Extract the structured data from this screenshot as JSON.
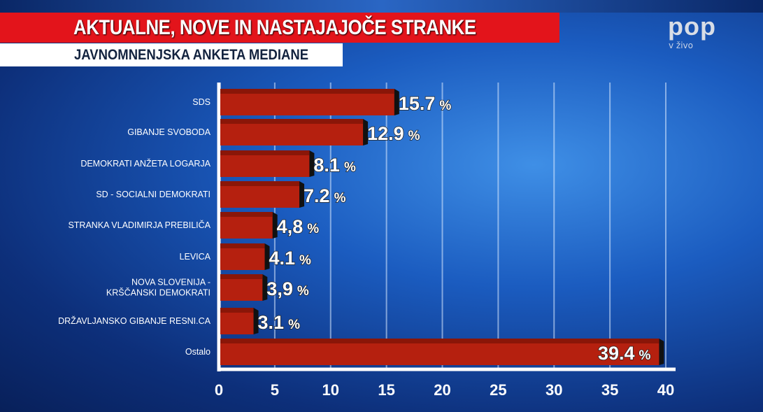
{
  "header": {
    "title": "AKTUALNE, NOVE IN NASTAJAJOČE STRANKE",
    "subtitle": "JAVNOMNENJSKA ANKETA MEDIANE",
    "logo": "pop",
    "live_label": "v živo"
  },
  "colors": {
    "bar": "#b5200f",
    "bar_top": "#8a1608",
    "title_bg": "#e3141b"
  },
  "chart_data": {
    "type": "bar",
    "orientation": "horizontal",
    "title": "AKTUALNE, NOVE IN NASTAJAJOČE STRANKE",
    "subtitle": "JAVNOMNENJSKA ANKETA MEDIANE",
    "categories": [
      [
        "SDS"
      ],
      [
        "GIBANJE SVOBODA"
      ],
      [
        "DEMOKRATI ANŽETA LOGARJA"
      ],
      [
        "SD - SOCIALNI DEMOKRATI"
      ],
      [
        "STRANKA VLADIMIRJA PREBILIČA"
      ],
      [
        "LEVICA"
      ],
      [
        "NOVA SLOVENIJA -",
        "KRŠČANSKI DEMOKRATI"
      ],
      [
        "DRŽAVLJANSKO GIBANJE RESNI.CA"
      ],
      [
        "Ostalo"
      ]
    ],
    "values": [
      15.7,
      12.9,
      8.1,
      7.2,
      4.8,
      4.1,
      3.9,
      3.1,
      39.4
    ],
    "value_labels": [
      "15.7",
      "12.9",
      "8.1",
      "7.2",
      "4,8",
      "4.1",
      "3,9",
      "3.1",
      "39.4"
    ],
    "unit": "%",
    "xlim": [
      0,
      40
    ],
    "xticks": [
      0,
      5,
      10,
      15,
      20,
      25,
      30,
      35,
      40
    ],
    "grid": true,
    "xlabel": "",
    "ylabel": ""
  }
}
